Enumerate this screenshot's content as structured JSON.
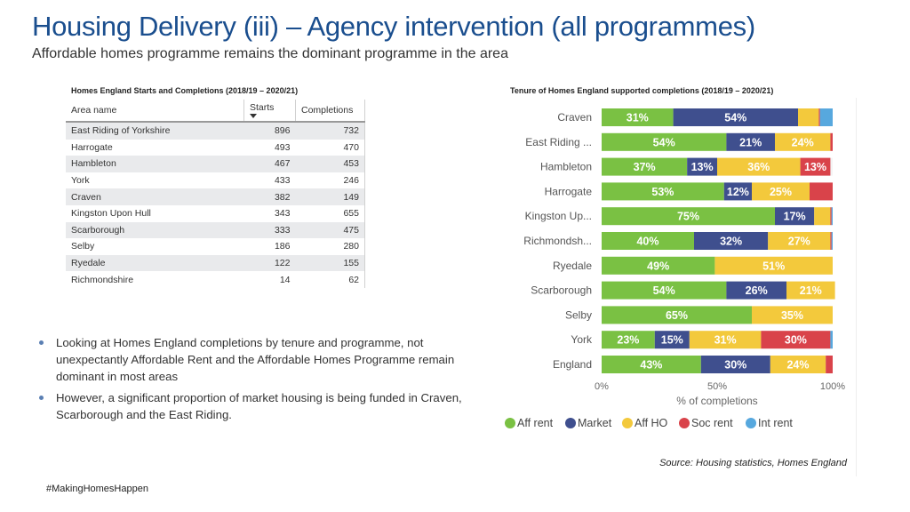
{
  "slide": {
    "title": "Housing Delivery (iii) – Agency intervention (all programmes)",
    "subtitle": "Affordable homes programme remains the dominant programme in the area",
    "hashtag": "#MakingHomesHappen"
  },
  "table": {
    "caption": "Homes England Starts and Completions (2018/19 – 2020/21)",
    "headers": {
      "area": "Area name",
      "starts": "Starts",
      "completions": "Completions"
    },
    "rows": [
      {
        "area": "East Riding of Yorkshire",
        "starts": "896",
        "completions": "732"
      },
      {
        "area": "Harrogate",
        "starts": "493",
        "completions": "470"
      },
      {
        "area": "Hambleton",
        "starts": "467",
        "completions": "453"
      },
      {
        "area": "York",
        "starts": "433",
        "completions": "246"
      },
      {
        "area": "Craven",
        "starts": "382",
        "completions": "149"
      },
      {
        "area": "Kingston Upon Hull",
        "starts": "343",
        "completions": "655"
      },
      {
        "area": "Scarborough",
        "starts": "333",
        "completions": "475"
      },
      {
        "area": "Selby",
        "starts": "186",
        "completions": "280"
      },
      {
        "area": "Ryedale",
        "starts": "122",
        "completions": "155"
      },
      {
        "area": "Richmondshire",
        "starts": "14",
        "completions": "62"
      }
    ]
  },
  "bullets": [
    "Looking at Homes England completions by tenure and programme, not unexpectantly Affordable Rent and the Affordable Homes Programme remain dominant in most areas",
    "However, a significant proportion of market housing is being funded in Craven, Scarborough and the East Riding."
  ],
  "chart_data": {
    "type": "bar",
    "orientation": "horizontal",
    "stacked": true,
    "title": "Tenure of Homes England supported completions (2018/19 – 2020/21)",
    "xlabel": "% of completions",
    "xlim": [
      0,
      100
    ],
    "x_ticks": [
      "0%",
      "50%",
      "100%"
    ],
    "categories": [
      "Craven",
      "East Riding ...",
      "Hambleton",
      "Harrogate",
      "Kingston Up...",
      "Richmondsh...",
      "Ryedale",
      "Scarborough",
      "Selby",
      "York",
      "England"
    ],
    "series": [
      {
        "name": "Aff rent",
        "color": "#7ac143",
        "values": [
          31,
          54,
          37,
          53,
          75,
          40,
          49,
          54,
          65,
          23,
          43
        ]
      },
      {
        "name": "Market",
        "color": "#3f4f8e",
        "values": [
          54,
          21,
          13,
          12,
          17,
          32,
          0,
          26,
          0,
          15,
          30
        ]
      },
      {
        "name": "Aff HO",
        "color": "#f3c93c",
        "values": [
          9,
          24,
          36,
          25,
          7,
          27,
          51,
          21,
          35,
          31,
          24
        ]
      },
      {
        "name": "Soc rent",
        "color": "#d9434a",
        "values": [
          0.5,
          1,
          13,
          10,
          0.5,
          0.5,
          0,
          0,
          0,
          30,
          3
        ]
      },
      {
        "name": "Int rent",
        "color": "#57a8de",
        "values": [
          5.5,
          0,
          0,
          0,
          0.5,
          0.5,
          0,
          0,
          0,
          1,
          0
        ]
      }
    ],
    "data_labels": [
      [
        "31%",
        "54%",
        "",
        "",
        ""
      ],
      [
        "54%",
        "21%",
        "24%",
        "",
        ""
      ],
      [
        "37%",
        "13%",
        "36%",
        "13%",
        ""
      ],
      [
        "53%",
        "12%",
        "25%",
        "",
        ""
      ],
      [
        "75%",
        "17%",
        "",
        "",
        ""
      ],
      [
        "40%",
        "32%",
        "27%",
        "",
        ""
      ],
      [
        "49%",
        "",
        "51%",
        "",
        ""
      ],
      [
        "54%",
        "26%",
        "21%",
        "",
        ""
      ],
      [
        "65%",
        "",
        "35%",
        "",
        ""
      ],
      [
        "23%",
        "15%",
        "31%",
        "30%",
        ""
      ],
      [
        "43%",
        "30%",
        "24%",
        "",
        ""
      ]
    ],
    "legend_position": "bottom",
    "source": "Source: Housing statistics, Homes England"
  }
}
